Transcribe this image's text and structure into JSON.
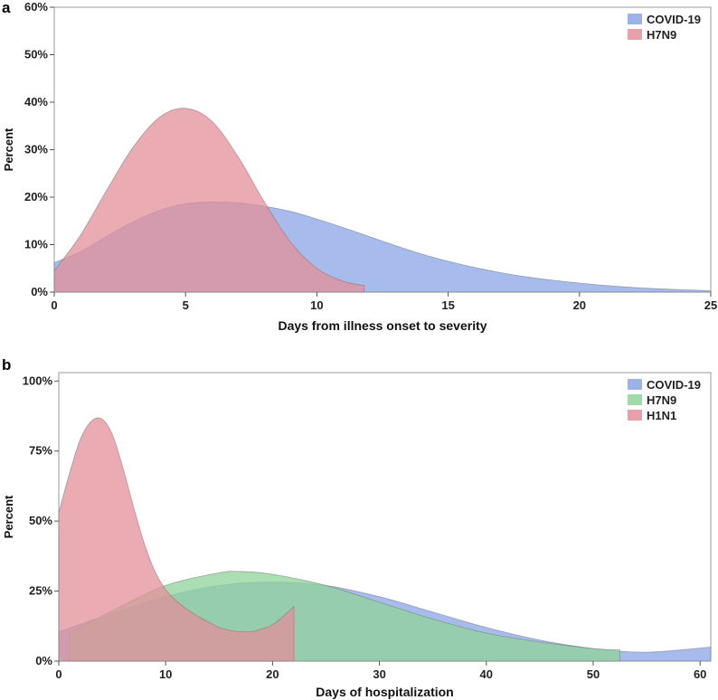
{
  "chart_data": [
    {
      "panel": "a",
      "type": "area",
      "title": "",
      "xlabel": "Days from illness onset to severity",
      "ylabel": "Percent",
      "xlim": [
        0,
        25
      ],
      "ylim": [
        0,
        60
      ],
      "xticks": [
        0,
        5,
        10,
        15,
        20,
        25
      ],
      "yticks": [
        0,
        10,
        20,
        30,
        40,
        50,
        60
      ],
      "ytick_labels": [
        "0%",
        "10%",
        "20%",
        "30%",
        "40%",
        "50%",
        "60%"
      ],
      "legend_position": "top-right",
      "series": [
        {
          "name": "COVID-19",
          "color": "#8aa6e6",
          "x": [
            0,
            1,
            2,
            3,
            4,
            5,
            6,
            7,
            8,
            9,
            10,
            11,
            12,
            13,
            14,
            15,
            16,
            17,
            18,
            19,
            20,
            21,
            22,
            23,
            24,
            25
          ],
          "values": [
            6.2,
            8.5,
            11.8,
            14.8,
            17.2,
            18.6,
            19.0,
            18.8,
            18.1,
            17.0,
            15.4,
            13.6,
            11.7,
            9.8,
            8.0,
            6.5,
            5.2,
            4.1,
            3.2,
            2.5,
            1.9,
            1.4,
            1.0,
            0.7,
            0.5,
            0.3
          ]
        },
        {
          "name": "H7N9",
          "color": "#e38f99",
          "x": [
            0,
            1,
            2,
            3,
            4,
            5,
            6,
            7,
            8,
            9,
            10,
            11,
            11.8
          ],
          "values": [
            4.5,
            12.0,
            21.5,
            30.5,
            36.8,
            38.7,
            36.0,
            28.5,
            19.0,
            10.5,
            5.0,
            2.3,
            1.4
          ]
        }
      ]
    },
    {
      "panel": "b",
      "type": "area",
      "title": "",
      "xlabel": "Days of hospitalization",
      "ylabel": "Percent",
      "xlim": [
        0,
        61
      ],
      "ylim": [
        0,
        103
      ],
      "xticks": [
        0,
        10,
        20,
        30,
        40,
        50,
        60
      ],
      "yticks": [
        0,
        25,
        50,
        75,
        100
      ],
      "ytick_labels": [
        "0%",
        "25%",
        "50%",
        "75%",
        "100%"
      ],
      "legend_position": "top-right",
      "series": [
        {
          "name": "COVID-19",
          "color": "#8aa6e6",
          "x": [
            0,
            5,
            10,
            15,
            20,
            25,
            30,
            35,
            40,
            45,
            50,
            55,
            61
          ],
          "values": [
            10.5,
            17.0,
            23.0,
            27.0,
            28.2,
            27.0,
            23.0,
            17.5,
            12.0,
            7.5,
            4.5,
            3.2,
            5.0
          ]
        },
        {
          "name": "H7N9",
          "color": "#8fd39a",
          "x": [
            1,
            5,
            10,
            15,
            17,
            20,
            25,
            30,
            35,
            40,
            45,
            50,
            52.5
          ],
          "values": [
            10.0,
            18.0,
            27.0,
            31.5,
            32.0,
            31.0,
            27.0,
            21.0,
            15.0,
            10.0,
            6.8,
            4.5,
            4.0
          ]
        },
        {
          "name": "H1N1",
          "color": "#e38f99",
          "x": [
            0,
            1,
            2,
            3,
            4,
            5,
            6,
            7,
            8,
            9,
            10,
            11,
            12,
            13,
            14,
            15,
            16,
            17,
            18,
            19,
            20,
            21,
            22
          ],
          "values": [
            53.0,
            67.0,
            79.0,
            85.5,
            86.5,
            81.0,
            69.0,
            55.0,
            42.0,
            32.0,
            25.5,
            21.5,
            18.5,
            16.0,
            14.0,
            12.0,
            11.0,
            10.5,
            10.5,
            11.5,
            13.0,
            16.0,
            19.5
          ]
        }
      ]
    }
  ]
}
